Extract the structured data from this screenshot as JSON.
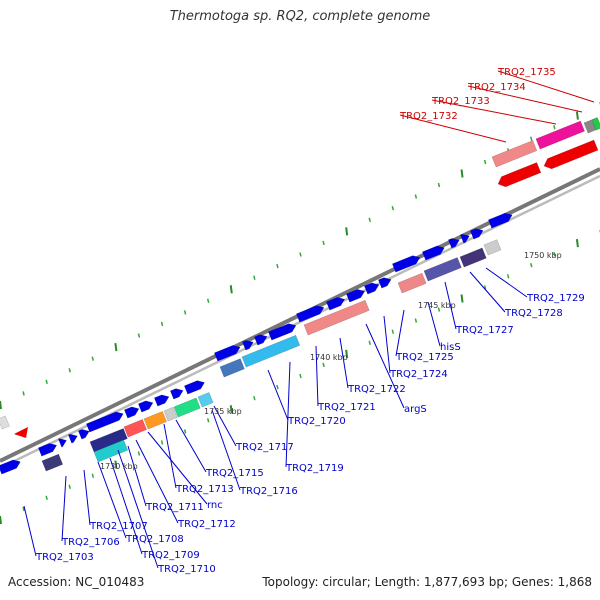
{
  "title": "Thermotoga sp. RQ2, complete genome",
  "footer": {
    "accession": "Accession: NC_010483",
    "topology": "Topology: circular; Length: 1,877,693 bp; Genes: 1,868"
  },
  "kbp_ticks": [
    "1730 kbp",
    "1735 kbp",
    "1740 kbp",
    "1745 kbp",
    "1750 kbp"
  ],
  "labels_red": [
    "TRQ2_1735",
    "TRQ2_1734",
    "TRQ2_1733",
    "TRQ2_1732"
  ],
  "labels_blue": [
    "TRQ2_1729",
    "TRQ2_1728",
    "TRQ2_1727",
    "hisS",
    "TRQ2_1725",
    "TRQ2_1724",
    "argS",
    "TRQ2_1722",
    "TRQ2_1721",
    "TRQ2_1720",
    "TRQ2_1719",
    "TRQ2_1717",
    "TRQ2_1716",
    "TRQ2_1715",
    "TRQ2_1713",
    "rnc",
    "TRQ2_1712",
    "TRQ2_1711",
    "TRQ2_1710",
    "TRQ2_1709",
    "TRQ2_1708",
    "TRQ2_1707",
    "TRQ2_1706",
    "TRQ2_1703"
  ],
  "colors": {
    "forward_gene": "#0000e6",
    "reverse_gene": "#ee0000",
    "label_blue": "#0000cc",
    "label_red": "#cc0000",
    "backbone": "#888888",
    "tick_mark": "#2a8a2a"
  }
}
